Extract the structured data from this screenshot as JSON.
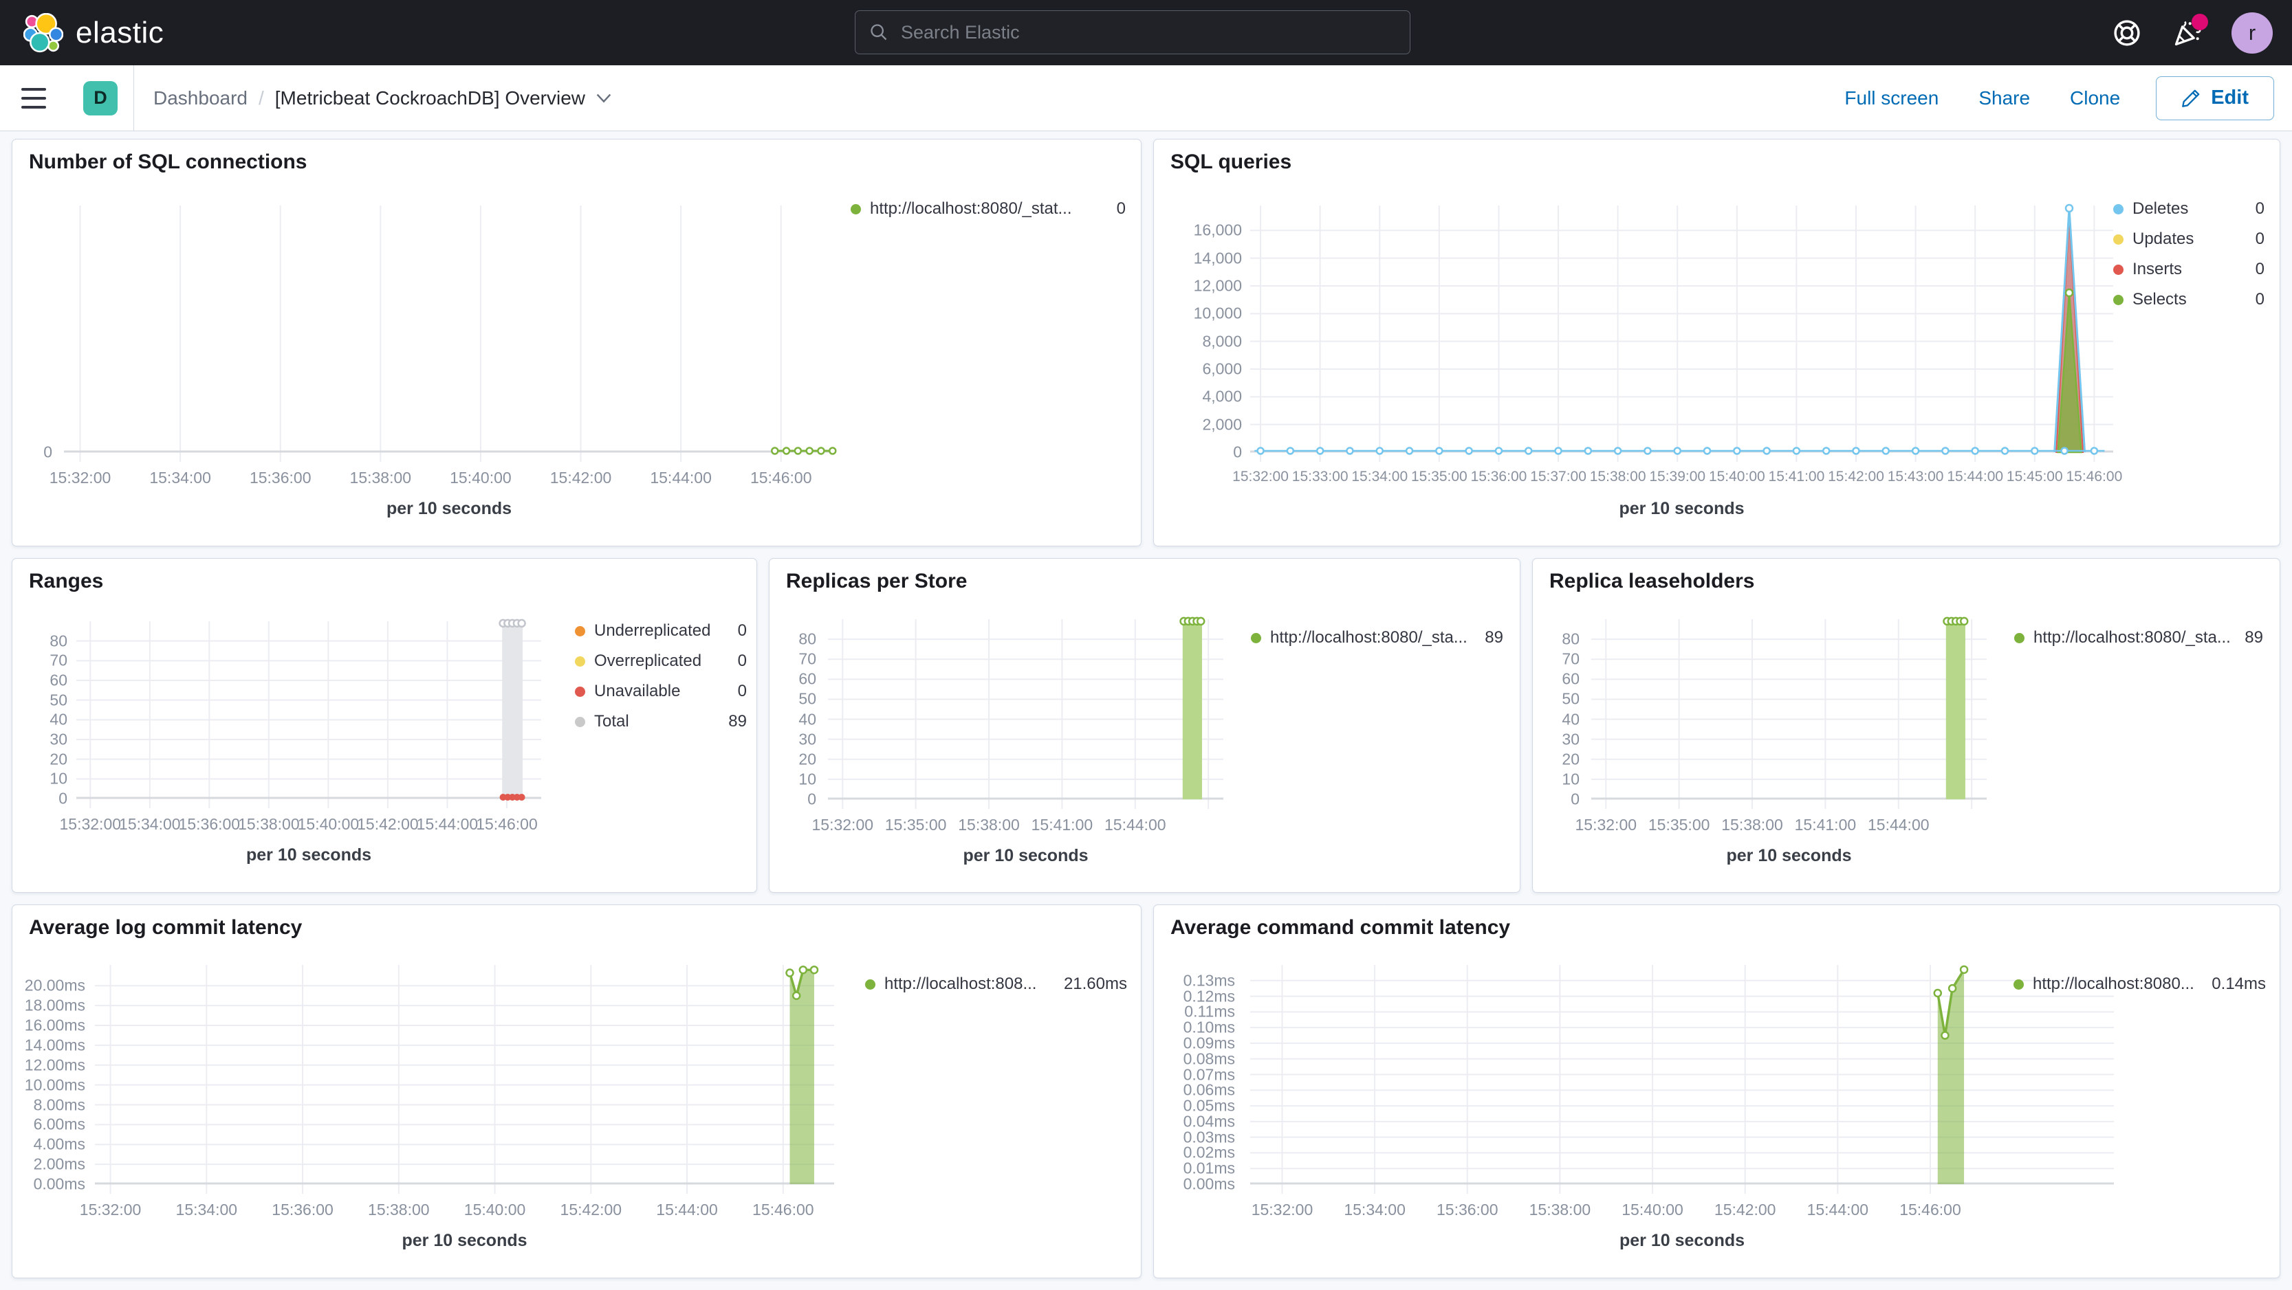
{
  "header": {
    "logo_text": "elastic",
    "search_placeholder": "Search Elastic",
    "avatar_initial": "r",
    "icons": [
      "help-icon",
      "newsfeed-icon"
    ]
  },
  "toolbar": {
    "app_badge": "D",
    "breadcrumb_root": "Dashboard",
    "breadcrumb_separator": "/",
    "breadcrumb_current": "[Metricbeat CockroachDB] Overview",
    "actions": [
      "Full screen",
      "Share",
      "Clone"
    ],
    "edit_label": "Edit"
  },
  "chart_data": [
    {
      "id": "sql-connections",
      "type": "line",
      "title": "Number of SQL connections",
      "xlabel": "per 10 seconds",
      "xticks": [
        "15:32:00",
        "15:34:00",
        "15:36:00",
        "15:38:00",
        "15:40:00",
        "15:42:00",
        "15:44:00",
        "15:46:00"
      ],
      "ytick_labels": [
        "0"
      ],
      "ytick_values": [
        0
      ],
      "ylim": [
        0,
        1
      ],
      "legend_position": "right",
      "grid": true,
      "legend": [
        {
          "label": "http://localhost:8080/_stat...",
          "value": "0",
          "color": "#7db33d"
        }
      ],
      "series": [
        {
          "name": "http://localhost:8080/_stat...",
          "color": "#7db33d",
          "points": [
            [
              "15:45:50",
              0
            ],
            [
              "15:46:00",
              0
            ],
            [
              "15:46:10",
              0
            ],
            [
              "15:46:20",
              0
            ],
            [
              "15:46:30",
              0
            ],
            [
              "15:46:40",
              0
            ]
          ]
        }
      ]
    },
    {
      "id": "sql-queries",
      "type": "area",
      "title": "SQL queries",
      "xlabel": "per 10 seconds",
      "xticks": [
        "15:32:00",
        "15:33:00",
        "15:34:00",
        "15:35:00",
        "15:36:00",
        "15:37:00",
        "15:38:00",
        "15:39:00",
        "15:40:00",
        "15:41:00",
        "15:42:00",
        "15:43:00",
        "15:44:00",
        "15:45:00",
        "15:46:00"
      ],
      "ytick_labels": [
        "16,000",
        "14,000",
        "12,000",
        "10,000",
        "8,000",
        "6,000",
        "4,000",
        "2,000",
        "0"
      ],
      "ytick_values": [
        16000,
        14000,
        12000,
        10000,
        8000,
        6000,
        4000,
        2000,
        0
      ],
      "ylim": [
        0,
        17800
      ],
      "legend_position": "right",
      "grid": true,
      "legend": [
        {
          "label": "Deletes",
          "value": "0",
          "color": "#75c6ee"
        },
        {
          "label": "Updates",
          "value": "0",
          "color": "#f1d75e"
        },
        {
          "label": "Inserts",
          "value": "0",
          "color": "#e0584e"
        },
        {
          "label": "Selects",
          "value": "0",
          "color": "#7db33d"
        }
      ],
      "series": [
        {
          "name": "Deletes",
          "color": "#75c6ee",
          "points": [
            [
              "15:32:00",
              0
            ],
            [
              "15:45:40",
              0
            ],
            [
              "15:45:55",
              17600
            ],
            [
              "15:46:10",
              0
            ],
            [
              "15:46:40",
              0
            ]
          ]
        },
        {
          "name": "Updates",
          "color": "#f1d75e",
          "points": [
            [
              "15:32:00",
              0
            ],
            [
              "15:46:40",
              0
            ]
          ]
        },
        {
          "name": "Inserts",
          "color": "#e0584e",
          "points": [
            [
              "15:45:42",
              0
            ],
            [
              "15:45:55",
              17000
            ],
            [
              "15:46:08",
              0
            ]
          ]
        },
        {
          "name": "Selects",
          "color": "#7db33d",
          "points": [
            [
              "15:45:44",
              0
            ],
            [
              "15:45:55",
              11500
            ],
            [
              "15:46:06",
              0
            ]
          ]
        }
      ]
    },
    {
      "id": "ranges",
      "type": "bar",
      "title": "Ranges",
      "xlabel": "per 10 seconds",
      "xticks": [
        "15:32:00",
        "15:34:00",
        "15:36:00",
        "15:38:00",
        "15:40:00",
        "15:42:00",
        "15:44:00",
        "15:46:00"
      ],
      "ytick_labels": [
        "80",
        "70",
        "60",
        "50",
        "40",
        "30",
        "20",
        "10",
        "0"
      ],
      "ytick_values": [
        80,
        70,
        60,
        50,
        40,
        30,
        20,
        10,
        0
      ],
      "ylim": [
        0,
        90
      ],
      "legend_position": "right",
      "grid": true,
      "legend": [
        {
          "label": "Underreplicated",
          "value": "0",
          "color": "#ef9234"
        },
        {
          "label": "Overreplicated",
          "value": "0",
          "color": "#f1d75e"
        },
        {
          "label": "Unavailable",
          "value": "0",
          "color": "#e0584e"
        },
        {
          "label": "Total",
          "value": "89",
          "color": "#c9c9c9"
        }
      ],
      "series": [
        {
          "name": "Underreplicated",
          "color": "#ef9234",
          "points": [
            [
              "15:32:00",
              0
            ],
            [
              "15:46:30",
              0
            ]
          ]
        },
        {
          "name": "Overreplicated",
          "color": "#f1d75e",
          "points": [
            [
              "15:32:00",
              0
            ],
            [
              "15:46:30",
              0
            ]
          ]
        },
        {
          "name": "Unavailable",
          "color": "#e0584e",
          "points": [
            [
              "15:45:55",
              0
            ],
            [
              "15:46:00",
              0
            ],
            [
              "15:46:05",
              0
            ],
            [
              "15:46:10",
              0
            ],
            [
              "15:46:15",
              0
            ]
          ]
        },
        {
          "name": "Total",
          "color": "#c9c9c9",
          "points": [
            [
              "15:45:55",
              89
            ],
            [
              "15:46:00",
              89
            ],
            [
              "15:46:05",
              89
            ],
            [
              "15:46:10",
              89
            ],
            [
              "15:46:15",
              89
            ]
          ]
        }
      ]
    },
    {
      "id": "replicas-per-store",
      "type": "bar",
      "title": "Replicas per Store",
      "xlabel": "per 10 seconds",
      "xticks": [
        "15:32:00",
        "15:35:00",
        "15:38:00",
        "15:41:00",
        "15:44:00"
      ],
      "ytick_labels": [
        "80",
        "70",
        "60",
        "50",
        "40",
        "30",
        "20",
        "10",
        "0"
      ],
      "ytick_values": [
        80,
        70,
        60,
        50,
        40,
        30,
        20,
        10,
        0
      ],
      "ylim": [
        0,
        90
      ],
      "legend_position": "right",
      "grid": true,
      "legend": [
        {
          "label": "http://localhost:8080/_sta...",
          "value": "89",
          "color": "#7db33d"
        }
      ],
      "series": [
        {
          "name": "http://localhost:8080/_sta...",
          "color": "#7db33d",
          "points": [
            [
              "15:45:55",
              89
            ],
            [
              "15:46:00",
              89
            ],
            [
              "15:46:05",
              89
            ],
            [
              "15:46:10",
              89
            ],
            [
              "15:46:20",
              89
            ]
          ]
        }
      ]
    },
    {
      "id": "replica-leaseholders",
      "type": "bar",
      "title": "Replica leaseholders",
      "xlabel": "per 10 seconds",
      "xticks": [
        "15:32:00",
        "15:35:00",
        "15:38:00",
        "15:41:00",
        "15:44:00"
      ],
      "ytick_labels": [
        "80",
        "70",
        "60",
        "50",
        "40",
        "30",
        "20",
        "10",
        "0"
      ],
      "ytick_values": [
        80,
        70,
        60,
        50,
        40,
        30,
        20,
        10,
        0
      ],
      "ylim": [
        0,
        90
      ],
      "legend_position": "right",
      "grid": true,
      "legend": [
        {
          "label": "http://localhost:8080/_sta...",
          "value": "89",
          "color": "#7db33d"
        }
      ],
      "series": [
        {
          "name": "http://localhost:8080/_sta...",
          "color": "#7db33d",
          "points": [
            [
              "15:45:55",
              89
            ],
            [
              "15:46:00",
              89
            ],
            [
              "15:46:05",
              89
            ],
            [
              "15:46:10",
              89
            ],
            [
              "15:46:20",
              89
            ]
          ]
        }
      ]
    },
    {
      "id": "avg-log-commit-latency",
      "type": "area",
      "title": "Average log commit latency",
      "xlabel": "per 10 seconds",
      "xticks": [
        "15:32:00",
        "15:34:00",
        "15:36:00",
        "15:38:00",
        "15:40:00",
        "15:42:00",
        "15:44:00",
        "15:46:00"
      ],
      "ytick_labels": [
        "20.00ms",
        "18.00ms",
        "16.00ms",
        "14.00ms",
        "12.00ms",
        "10.00ms",
        "8.00ms",
        "6.00ms",
        "4.00ms",
        "2.00ms",
        "0.00ms"
      ],
      "ytick_values": [
        20,
        18,
        16,
        14,
        12,
        10,
        8,
        6,
        4,
        2,
        0
      ],
      "ylim": [
        0,
        22.1
      ],
      "legend_position": "right",
      "grid": true,
      "legend": [
        {
          "label": "http://localhost:808...",
          "value": "21.60ms",
          "color": "#7db33d"
        }
      ],
      "series": [
        {
          "name": "http://localhost:808...",
          "color": "#7db33d",
          "points": [
            [
              "15:45:50",
              21.3
            ],
            [
              "15:45:58",
              19.0
            ],
            [
              "15:46:06",
              21.6
            ],
            [
              "15:46:20",
              21.6
            ]
          ]
        }
      ]
    },
    {
      "id": "avg-command-commit-latency",
      "type": "area",
      "title": "Average command commit latency",
      "xlabel": "per 10 seconds",
      "xticks": [
        "15:32:00",
        "15:34:00",
        "15:36:00",
        "15:38:00",
        "15:40:00",
        "15:42:00",
        "15:44:00",
        "15:46:00"
      ],
      "ytick_labels": [
        "0.13ms",
        "0.12ms",
        "0.11ms",
        "0.10ms",
        "0.09ms",
        "0.08ms",
        "0.07ms",
        "0.06ms",
        "0.05ms",
        "0.04ms",
        "0.03ms",
        "0.02ms",
        "0.01ms",
        "0.00ms"
      ],
      "ytick_values": [
        0.13,
        0.12,
        0.11,
        0.1,
        0.09,
        0.08,
        0.07,
        0.06,
        0.05,
        0.04,
        0.03,
        0.02,
        0.01,
        0
      ],
      "ylim": [
        0,
        0.14
      ],
      "legend_position": "right",
      "grid": true,
      "legend": [
        {
          "label": "http://localhost:8080...",
          "value": "0.14ms",
          "color": "#7db33d"
        }
      ],
      "series": [
        {
          "name": "http://localhost:8080...",
          "color": "#7db33d",
          "points": [
            [
              "15:45:50",
              0.122
            ],
            [
              "15:45:57",
              0.095
            ],
            [
              "15:46:04",
              0.125
            ],
            [
              "15:46:15",
              0.137
            ]
          ]
        }
      ]
    }
  ]
}
